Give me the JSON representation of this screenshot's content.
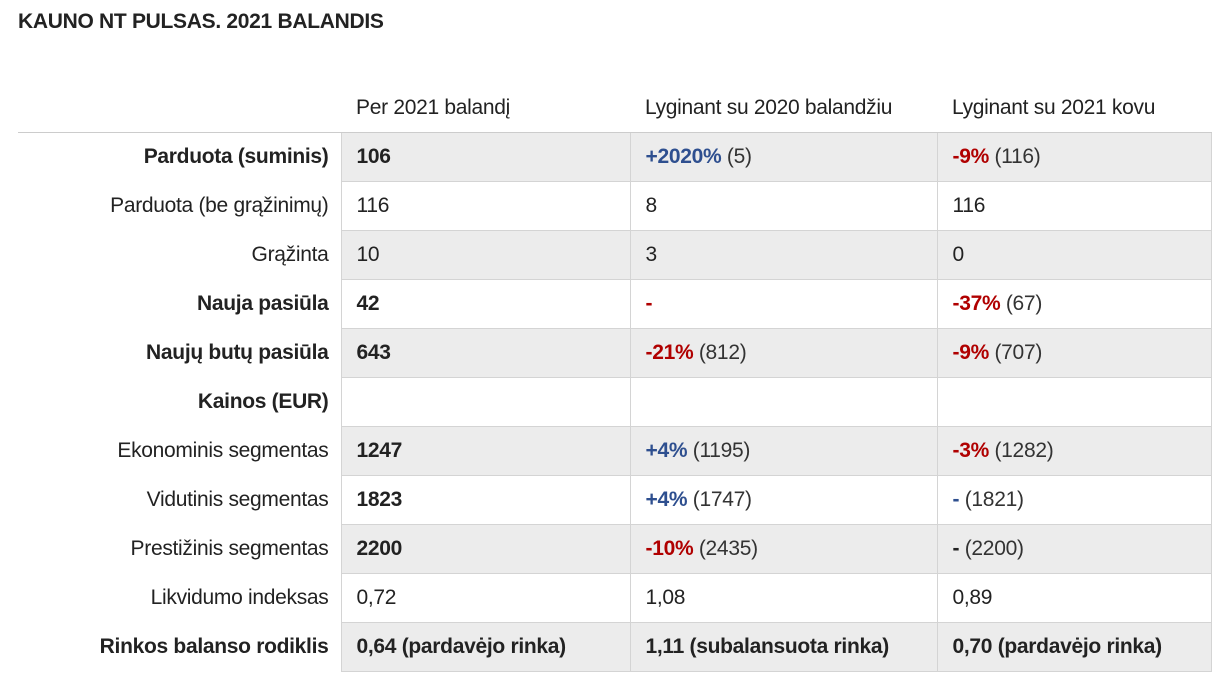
{
  "title": "KAUNO NT PULSAS. 2021 BALANDIS",
  "columns": [
    "",
    "Per 2021 balandį",
    "Lyginant su 2020 balandžiu",
    "Lyginant su 2021 kovu"
  ],
  "rows": [
    {
      "label": "Parduota (suminis)",
      "label_bold": true,
      "shade": true,
      "c1": {
        "value": "106",
        "bold": true
      },
      "c2": {
        "change": "+2020%",
        "change_type": "pos",
        "rest": " (5)"
      },
      "c3": {
        "change": "-9%",
        "change_type": "neg",
        "rest": " (116)"
      }
    },
    {
      "label": "Parduota (be grąžinimų)",
      "label_bold": false,
      "shade": false,
      "c1": {
        "value": "116",
        "bold": false
      },
      "c2": {
        "value": "8"
      },
      "c3": {
        "value": "116"
      }
    },
    {
      "label": "Grąžinta",
      "label_bold": false,
      "shade": true,
      "c1": {
        "value": "10",
        "bold": false
      },
      "c2": {
        "value": "3"
      },
      "c3": {
        "value": "0"
      }
    },
    {
      "label": "Nauja pasiūla",
      "label_bold": true,
      "shade": false,
      "c1": {
        "value": "42",
        "bold": true
      },
      "c2": {
        "change": "-",
        "change_type": "neg",
        "rest": ""
      },
      "c3": {
        "change": "-37%",
        "change_type": "neg",
        "rest": " (67)"
      }
    },
    {
      "label": "Naujų butų pasiūla",
      "label_bold": true,
      "shade": true,
      "c1": {
        "value": "643",
        "bold": true
      },
      "c2": {
        "change": "-21%",
        "change_type": "neg",
        "rest": " (812)"
      },
      "c3": {
        "change": "-9%",
        "change_type": "neg",
        "rest": " (707)"
      }
    },
    {
      "label": "Kainos (EUR)",
      "label_bold": true,
      "shade": false,
      "c1": {
        "value": "",
        "bold": false
      },
      "c2": {
        "value": ""
      },
      "c3": {
        "value": ""
      }
    },
    {
      "label": "Ekonominis segmentas",
      "label_bold": false,
      "shade": true,
      "c1": {
        "value": "1247",
        "bold": true
      },
      "c2": {
        "change": "+4%",
        "change_type": "pos",
        "rest": " (1195)"
      },
      "c3": {
        "change": "-3%",
        "change_type": "neg",
        "rest": " (1282)"
      }
    },
    {
      "label": "Vidutinis segmentas",
      "label_bold": false,
      "shade": false,
      "c1": {
        "value": "1823",
        "bold": true
      },
      "c2": {
        "change": "+4%",
        "change_type": "pos",
        "rest": " (1747)"
      },
      "c3": {
        "change": "-",
        "change_type": "pos",
        "rest": " (1821)"
      }
    },
    {
      "label": "Prestižinis segmentas",
      "label_bold": false,
      "shade": true,
      "c1": {
        "value": "2200",
        "bold": true
      },
      "c2": {
        "change": "-10%",
        "change_type": "neg",
        "rest": " (2435)"
      },
      "c3": {
        "change": "-",
        "change_type": "neu",
        "rest": " (2200)"
      }
    },
    {
      "label": "Likvidumo indeksas",
      "label_bold": false,
      "shade": false,
      "c1": {
        "value": "0,72",
        "bold": false
      },
      "c2": {
        "value": "1,08"
      },
      "c3": {
        "value": "0,89"
      }
    },
    {
      "label": "Rinkos balanso rodiklis",
      "label_bold": true,
      "shade": true,
      "c1": {
        "value": "0,64 (pardavėjo rinka)",
        "bold": true
      },
      "c2": {
        "value": "1,11 (subalansuota rinka)",
        "bold": true
      },
      "c3": {
        "value": "0,70 (pardavėjo rinka)",
        "bold": true
      }
    }
  ],
  "colors": {
    "positive": "#2e4f8f",
    "negative": "#b00000",
    "shade": "#ececec",
    "text": "#222222"
  }
}
